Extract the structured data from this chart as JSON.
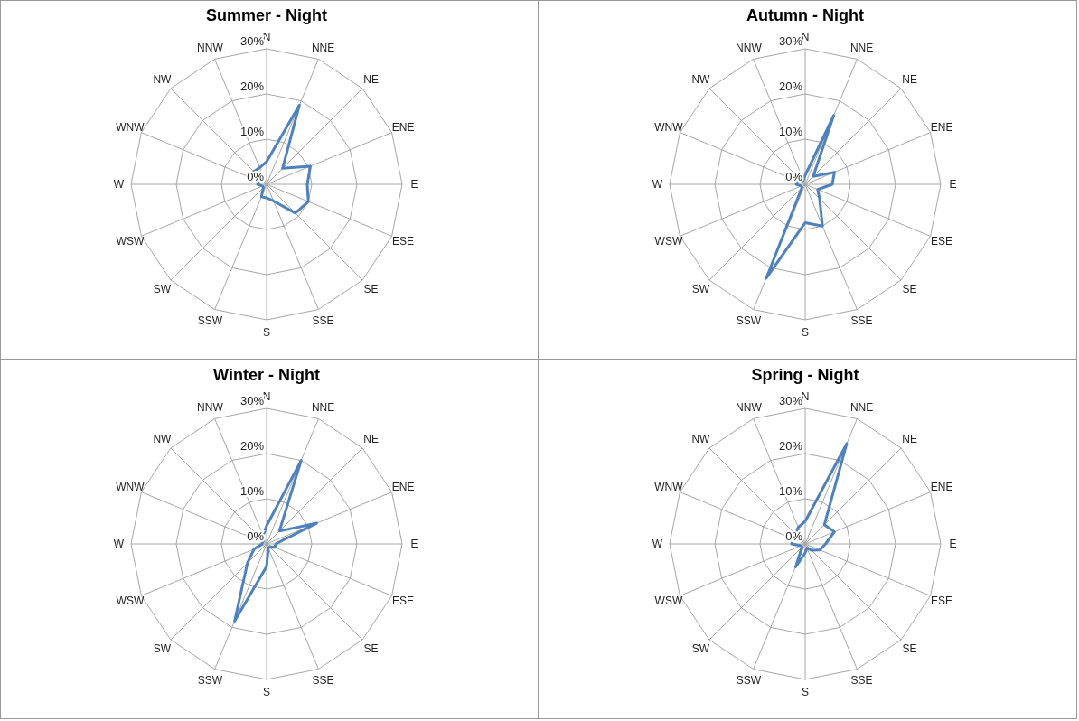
{
  "chart_data": [
    {
      "type": "radar",
      "title": "Summer - Night",
      "categories": [
        "N",
        "NNE",
        "NE",
        "ENE",
        "E",
        "ESE",
        "SE",
        "SSE",
        "S",
        "SSW",
        "SW",
        "WSW",
        "W",
        "WNW",
        "NW",
        "NNW"
      ],
      "series": [
        {
          "color": "#4f81bd",
          "values": [
            5,
            19,
            5,
            10.5,
            9,
            10,
            9,
            4,
            3,
            3,
            1,
            1,
            2,
            2,
            4,
            4
          ]
        }
      ],
      "ylim": [
        0,
        30
      ],
      "yticks": [
        {
          "value": 0,
          "label": "0%"
        },
        {
          "value": 10,
          "label": "10%"
        },
        {
          "value": 20,
          "label": "20%"
        },
        {
          "value": 30,
          "label": "30%"
        }
      ],
      "grid": true
    },
    {
      "type": "radar",
      "title": "Autumn - Night",
      "categories": [
        "N",
        "NNE",
        "NE",
        "ENE",
        "E",
        "ESE",
        "SE",
        "SSE",
        "S",
        "SSW",
        "SW",
        "WSW",
        "W",
        "WNW",
        "NW",
        "NNW"
      ],
      "series": [
        {
          "color": "#4f81bd",
          "values": [
            2,
            16.5,
            2.5,
            7,
            6,
            3,
            4.5,
            10,
            8.5,
            22.5,
            1,
            1,
            2,
            2,
            1,
            1
          ]
        }
      ],
      "ylim": [
        0,
        30
      ],
      "yticks": [
        {
          "value": 0,
          "label": "0%"
        },
        {
          "value": 10,
          "label": "10%"
        },
        {
          "value": 20,
          "label": "20%"
        },
        {
          "value": 30,
          "label": "30%"
        }
      ],
      "grid": true
    },
    {
      "type": "radar",
      "title": "Winter - Night",
      "categories": [
        "N",
        "NNE",
        "NE",
        "ENE",
        "E",
        "ESE",
        "SE",
        "SSE",
        "S",
        "SSW",
        "SW",
        "WSW",
        "W",
        "WNW",
        "NW",
        "NNW"
      ],
      "series": [
        {
          "color": "#4f81bd",
          "values": [
            4,
            20,
            4,
            12,
            2,
            2,
            1,
            1,
            5,
            18.5,
            6,
            3,
            1,
            1,
            1,
            2
          ]
        }
      ],
      "ylim": [
        0,
        30
      ],
      "yticks": [
        {
          "value": 0,
          "label": "0%"
        },
        {
          "value": 10,
          "label": "10%"
        },
        {
          "value": 20,
          "label": "20%"
        },
        {
          "value": 30,
          "label": "30%"
        }
      ],
      "grid": true
    },
    {
      "type": "radar",
      "title": "Spring - Night",
      "categories": [
        "N",
        "NNE",
        "NE",
        "ENE",
        "E",
        "ESE",
        "SE",
        "SSE",
        "S",
        "SSW",
        "SW",
        "WSW",
        "W",
        "WNW",
        "NW",
        "NNW"
      ],
      "series": [
        {
          "color": "#4f81bd",
          "values": [
            5,
            24,
            6,
            7,
            4.5,
            3.5,
            2,
            1,
            2,
            5.5,
            1,
            1,
            3,
            3,
            3,
            4
          ]
        }
      ],
      "ylim": [
        0,
        30
      ],
      "yticks": [
        {
          "value": 0,
          "label": "0%"
        },
        {
          "value": 10,
          "label": "10%"
        },
        {
          "value": 20,
          "label": "20%"
        },
        {
          "value": 30,
          "label": "30%"
        }
      ],
      "grid": true
    }
  ]
}
